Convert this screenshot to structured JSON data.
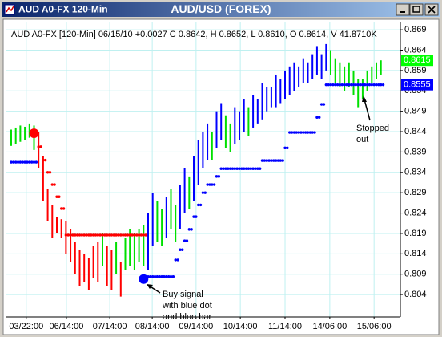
{
  "window_title": "AUD A0-FX 120-Min",
  "chart_data": {
    "type": "price-bars",
    "title": "AUD/USD (FOREX)",
    "subtitle": "AUD A0-FX [120-Min] 06/15/10 +0.0027 C 0.8642, H 0.8652, L 0.8610, O 0.8614, V 41.8710K",
    "xlim": [
      -1.05,
      85.26
    ],
    "xticks": [
      {
        "value": 3.3,
        "label": "03/22:00"
      },
      {
        "value": 12.1,
        "label": "06/14:00"
      },
      {
        "value": 21.6,
        "label": "07/14:00"
      },
      {
        "value": 30.9,
        "label": "08/14:00"
      },
      {
        "value": 40.5,
        "label": "09/14:00"
      },
      {
        "value": 50.2,
        "label": "10/14:00"
      },
      {
        "value": 60,
        "label": "11/14:00"
      },
      {
        "value": 69.8,
        "label": "14/06:00"
      },
      {
        "value": 79.5,
        "label": "15/06:00"
      }
    ],
    "ylim": [
      0.7985,
      0.8708
    ],
    "yticks": [
      0.869,
      0.864,
      0.859,
      0.854,
      0.849,
      0.844,
      0.839,
      0.834,
      0.829,
      0.824,
      0.819,
      0.814,
      0.809,
      0.804
    ],
    "grid": true,
    "bars": {
      "high": [
        0.8445,
        0.845,
        0.8455,
        0.8452,
        0.846,
        0.8455,
        0.844,
        0.838,
        0.83,
        0.826,
        0.823,
        0.8225,
        0.822,
        0.82,
        0.817,
        0.815,
        0.814,
        0.813,
        0.816,
        0.817,
        0.819,
        0.816,
        0.815,
        0.817,
        0.812,
        0.818,
        0.82,
        0.819,
        0.82,
        0.821,
        0.824,
        0.829,
        0.827,
        0.825,
        0.828,
        0.83,
        0.826,
        0.831,
        0.835,
        0.833,
        0.838,
        0.842,
        0.844,
        0.846,
        0.844,
        0.849,
        0.851,
        0.848,
        0.846,
        0.85,
        0.849,
        0.852,
        0.85,
        0.853,
        0.852,
        0.856,
        0.855,
        0.855,
        0.858,
        0.857,
        0.859,
        0.86,
        0.861,
        0.86,
        0.862,
        0.861,
        0.863,
        0.865,
        0.863,
        0.8655,
        0.864,
        0.862,
        0.861,
        0.86,
        0.861,
        0.859,
        0.857,
        0.857,
        0.859,
        0.86,
        0.861,
        0.8615
      ],
      "low": [
        0.8405,
        0.841,
        0.8415,
        0.842,
        0.8425,
        0.8395,
        0.835,
        0.827,
        0.822,
        0.818,
        0.819,
        0.818,
        0.814,
        0.812,
        0.809,
        0.806,
        0.807,
        0.805,
        0.808,
        0.807,
        0.811,
        0.806,
        0.805,
        0.809,
        0.8035,
        0.81,
        0.811,
        0.81,
        0.812,
        0.811,
        0.81,
        0.816,
        0.817,
        0.816,
        0.818,
        0.82,
        0.817,
        0.82,
        0.824,
        0.825,
        0.827,
        0.831,
        0.835,
        0.837,
        0.837,
        0.84,
        0.842,
        0.84,
        0.839,
        0.841,
        0.842,
        0.844,
        0.843,
        0.845,
        0.846,
        0.847,
        0.849,
        0.85,
        0.85,
        0.851,
        0.852,
        0.853,
        0.854,
        0.855,
        0.856,
        0.856,
        0.857,
        0.858,
        0.857,
        0.859,
        0.858,
        0.856,
        0.855,
        0.854,
        0.855,
        0.853,
        0.85,
        0.852,
        0.854,
        0.856,
        0.857,
        0.858
      ],
      "colors": [
        "#00e000",
        "#00e000",
        "#00e000",
        "#00e000",
        "#00e000",
        "#00e000",
        "#ff0000",
        "#ff0000",
        "#ff0000",
        "#ff0000",
        "#ff0000",
        "#ff0000",
        "#ff0000",
        "#ff0000",
        "#ff0000",
        "#ff0000",
        "#ff0000",
        "#ff0000",
        "#ff0000",
        "#ff0000",
        "#00e000",
        "#ff0000",
        "#ff0000",
        "#00e000",
        "#ff0000",
        "#00e000",
        "#00e000",
        "#00e000",
        "#00e000",
        "#00e000",
        "#0000ff",
        "#0000ff",
        "#00e000",
        "#00e000",
        "#0000ff",
        "#00e000",
        "#00e000",
        "#0000ff",
        "#0000ff",
        "#00e000",
        "#0000ff",
        "#0000ff",
        "#0000ff",
        "#0000ff",
        "#00e000",
        "#0000ff",
        "#0000ff",
        "#00e000",
        "#00e000",
        "#0000ff",
        "#0000ff",
        "#0000ff",
        "#00e000",
        "#0000ff",
        "#0000ff",
        "#0000ff",
        "#0000ff",
        "#0000ff",
        "#0000ff",
        "#0000ff",
        "#0000ff",
        "#0000ff",
        "#0000ff",
        "#0000ff",
        "#0000ff",
        "#0000ff",
        "#0000ff",
        "#0000ff",
        "#0000ff",
        "#0000ff",
        "#00e000",
        "#00e000",
        "#00e000",
        "#00e000",
        "#00e000",
        "#00e000",
        "#00e000",
        "#00e000",
        "#00e000",
        "#00e000",
        "#00e000",
        "#00e000"
      ]
    },
    "stops": {
      "values": [
        0.8365,
        0.8365,
        0.8365,
        0.8365,
        0.8365,
        0.8365,
        0.8403,
        0.837,
        0.834,
        0.831,
        0.828,
        0.8251,
        0.8186,
        0.8186,
        0.8186,
        0.8186,
        0.8186,
        0.8186,
        0.8186,
        0.8186,
        0.8186,
        0.8186,
        0.8186,
        0.8186,
        0.8186,
        0.8186,
        0.8186,
        0.8186,
        0.8186,
        0.8186,
        0.8084,
        0.8084,
        0.8084,
        0.8084,
        0.8084,
        0.8084,
        0.8125,
        0.815,
        0.8172,
        0.82,
        0.8231,
        0.826,
        0.829,
        0.831,
        0.831,
        0.833,
        0.8349,
        0.8349,
        0.8349,
        0.8349,
        0.8349,
        0.8349,
        0.8349,
        0.8349,
        0.8349,
        0.8369,
        0.8369,
        0.8369,
        0.8369,
        0.8369,
        0.84,
        0.8438,
        0.8438,
        0.8438,
        0.8438,
        0.8438,
        0.8438,
        0.8475,
        0.8507,
        0.8555,
        0.8555,
        0.8555,
        0.8555,
        0.8555,
        0.8555,
        0.8555,
        0.8555,
        0.8555,
        0.8555,
        0.8555,
        0.8555,
        0.8555
      ],
      "colors": [
        "#0000ff",
        "#0000ff",
        "#0000ff",
        "#0000ff",
        "#0000ff",
        "#0000ff",
        "#ff0000",
        "#ff0000",
        "#ff0000",
        "#ff0000",
        "#ff0000",
        "#ff0000",
        "#ff0000",
        "#ff0000",
        "#ff0000",
        "#ff0000",
        "#ff0000",
        "#ff0000",
        "#ff0000",
        "#ff0000",
        "#ff0000",
        "#ff0000",
        "#ff0000",
        "#ff0000",
        "#ff0000",
        "#ff0000",
        "#ff0000",
        "#ff0000",
        "#ff0000",
        "#ff0000",
        "#0000ff",
        "#0000ff",
        "#0000ff",
        "#0000ff",
        "#0000ff",
        "#0000ff",
        "#0000ff",
        "#0000ff",
        "#0000ff",
        "#0000ff",
        "#0000ff",
        "#0000ff",
        "#0000ff",
        "#0000ff",
        "#0000ff",
        "#0000ff",
        "#0000ff",
        "#0000ff",
        "#0000ff",
        "#0000ff",
        "#0000ff",
        "#0000ff",
        "#0000ff",
        "#0000ff",
        "#0000ff",
        "#0000ff",
        "#0000ff",
        "#0000ff",
        "#0000ff",
        "#0000ff",
        "#0000ff",
        "#0000ff",
        "#0000ff",
        "#0000ff",
        "#0000ff",
        "#0000ff",
        "#0000ff",
        "#0000ff",
        "#0000ff",
        "#0000ff",
        "#0000ff",
        "#0000ff",
        "#0000ff",
        "#0000ff",
        "#0000ff",
        "#0000ff",
        "#0000ff",
        "#0000ff",
        "#0000ff",
        "#0000ff",
        "#0000ff",
        "#0000ff"
      ]
    },
    "signals": [
      {
        "x": 5,
        "value": 0.8436,
        "color": "#ff0000"
      },
      {
        "x": 29,
        "value": 0.8078,
        "color": "#0000ff"
      }
    ],
    "price_boxes": [
      {
        "value": 0.8615,
        "color": "#00ff00",
        "text_color": "#ffffff"
      },
      {
        "value": 0.8555,
        "color": "#0000ff",
        "text_color": "#ffffff"
      }
    ],
    "annotations": [
      {
        "lines": [
          "Buy signal",
          "with blue dot",
          "and blue bar"
        ]
      },
      {
        "lines": [
          "Stopped",
          "out"
        ]
      }
    ]
  }
}
